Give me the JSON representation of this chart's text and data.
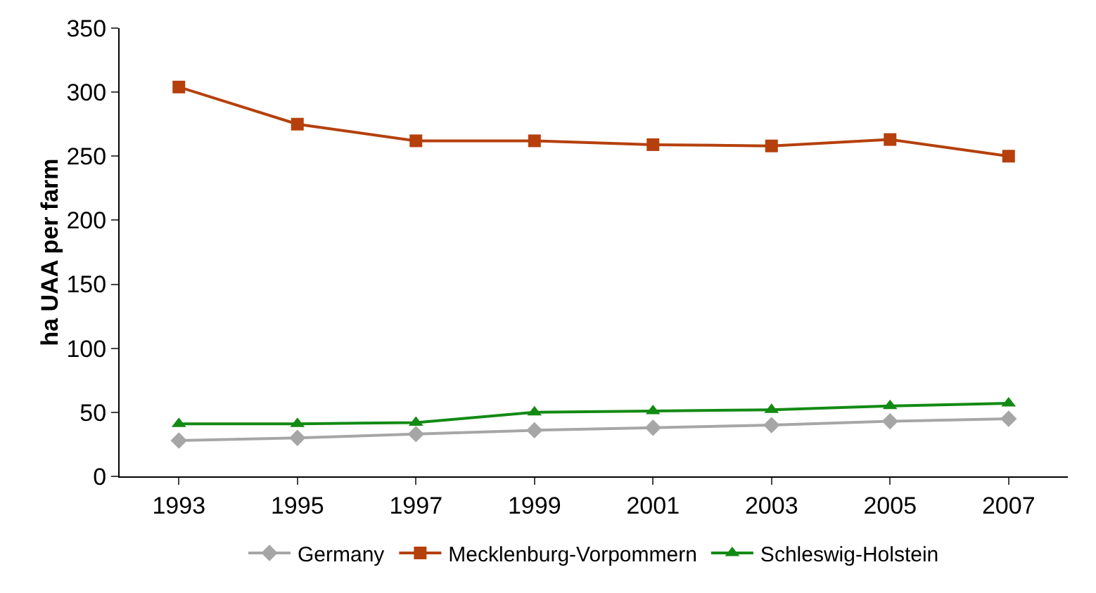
{
  "chart_data": {
    "type": "line",
    "ylabel": "ha UAA per farm",
    "categories": [
      "1993",
      "1995",
      "1997",
      "1999",
      "2001",
      "2003",
      "2005",
      "2007"
    ],
    "series": [
      {
        "name": "Germany",
        "color": "#a6a6a6",
        "marker": "diamond",
        "values": [
          28,
          30,
          33,
          36,
          38,
          40,
          43,
          45
        ]
      },
      {
        "name": "Mecklenburg-Vorpommern",
        "color": "#b5400c",
        "marker": "square",
        "values": [
          304,
          275,
          262,
          262,
          259,
          258,
          263,
          250
        ]
      },
      {
        "name": "Schleswig-Holstein",
        "color": "#138a13",
        "marker": "triangle",
        "values": [
          41,
          41,
          42,
          50,
          51,
          52,
          55,
          57
        ]
      }
    ],
    "ylim": [
      0,
      350
    ],
    "yticks": [
      0,
      50,
      100,
      150,
      200,
      250,
      300,
      350
    ],
    "grid": false,
    "legend": "bottom"
  }
}
